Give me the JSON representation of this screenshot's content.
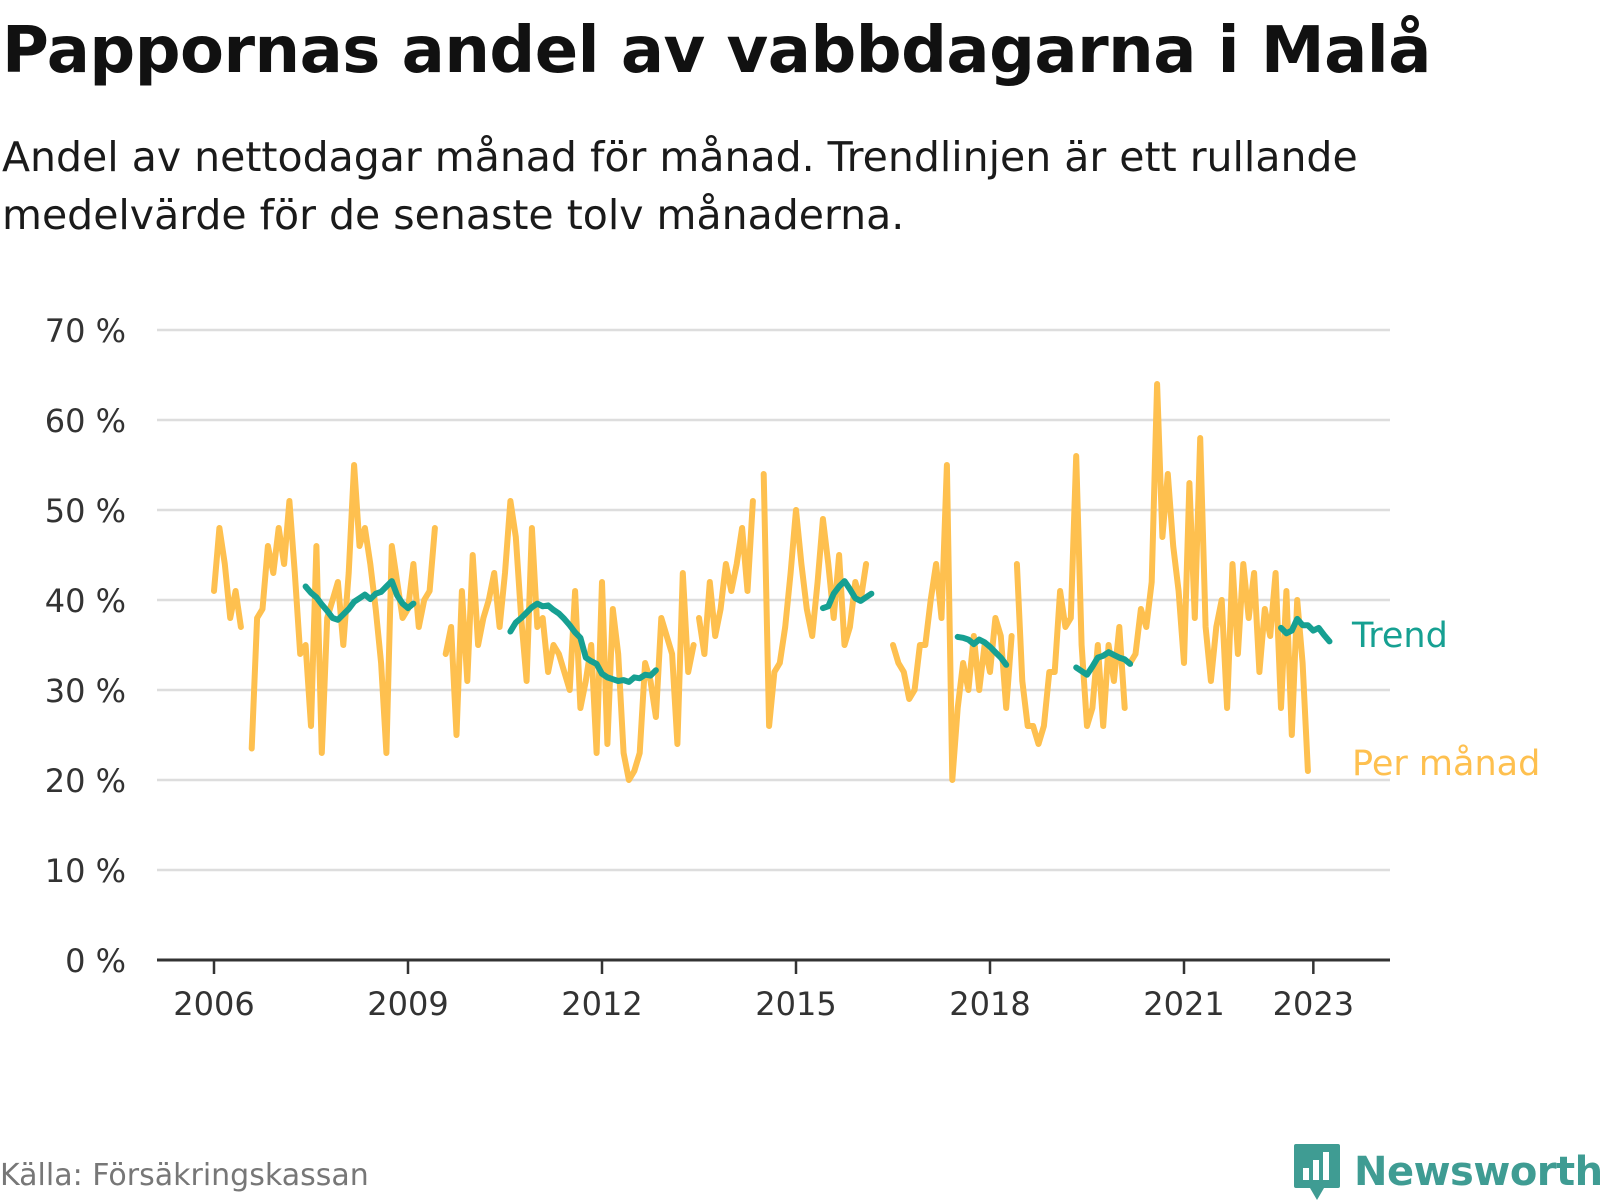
{
  "title": "Pappornas andel av vabbdagarna i Malå",
  "subtitle": "Andel av nettodagar månad för månad. Trendlinjen är ett rullande medelvärde för de senaste tolv månaderna.",
  "source": "Källa: Försäkringskassan",
  "brand": {
    "name": "Newsworthy",
    "logo_icon": "bar-chart-speech-bubble-icon"
  },
  "colors": {
    "monthly": "#fec04f",
    "trend": "#16a092",
    "grid": "#dddddd",
    "axis": "#333333",
    "text": "#333333"
  },
  "chart_data": {
    "type": "line",
    "xlim": [
      "2006-01",
      "2024-05"
    ],
    "ylim": [
      0,
      70
    ],
    "y_ticks": [
      "0 %",
      "10 %",
      "20 %",
      "30 %",
      "40 %",
      "50 %",
      "60 %",
      "70 %"
    ],
    "x_ticks": [
      {
        "date": "2006-01",
        "label": "2006"
      },
      {
        "date": "2009-01",
        "label": "2009"
      },
      {
        "date": "2012-01",
        "label": "2012"
      },
      {
        "date": "2015-01",
        "label": "2015"
      },
      {
        "date": "2018-01",
        "label": "2018"
      },
      {
        "date": "2021-01",
        "label": "2021"
      },
      {
        "date": "2023-01",
        "label": "2023"
      }
    ],
    "grid": true,
    "series": [
      {
        "name": "Per månad",
        "color": "#fec04f",
        "segments": [
          {
            "start": "2006-01",
            "values": [
              41,
              48,
              44,
              38,
              41,
              37,
              null,
              23.5,
              38,
              39,
              46,
              43,
              48,
              44,
              51,
              43,
              34,
              35,
              26,
              46,
              23,
              38,
              40,
              42,
              35,
              43,
              55,
              46,
              48,
              44,
              39,
              33,
              23,
              46,
              42,
              38,
              39,
              44,
              37,
              40,
              41,
              48
            ]
          },
          {
            "start": "2009-08",
            "values": [
              34,
              37,
              25,
              41,
              31,
              45,
              35,
              38,
              40,
              43,
              37,
              43,
              51,
              47,
              38,
              31,
              48,
              37,
              38,
              32,
              35,
              34,
              32,
              30,
              41,
              28,
              31,
              35,
              23,
              42,
              24,
              39,
              34,
              23,
              20,
              21,
              23,
              33,
              31,
              27,
              38,
              36,
              34,
              24,
              43,
              32,
              35
            ]
          },
          {
            "start": "2013-07",
            "values": [
              38,
              34,
              42,
              36,
              39,
              44,
              41,
              44,
              48,
              41,
              51,
              null,
              54,
              26,
              32,
              33,
              37,
              43,
              50,
              44,
              39,
              36,
              42,
              49,
              44,
              38,
              45,
              35,
              37,
              42,
              40,
              44
            ]
          },
          {
            "start": "2016-07",
            "values": [
              35,
              33,
              32,
              29,
              30,
              35,
              35,
              40,
              44,
              38,
              55,
              20,
              28,
              33,
              30,
              36,
              30,
              35,
              32,
              38,
              36,
              28,
              36
            ]
          },
          {
            "start": "2018-06",
            "values": [
              44,
              31,
              26,
              26,
              24,
              26,
              32,
              32,
              41,
              37,
              38,
              56,
              35,
              26,
              28,
              35,
              26,
              35,
              31,
              37,
              28
            ]
          },
          {
            "start": "2020-03",
            "values": [
              33,
              34,
              39,
              37,
              42,
              64,
              47,
              54,
              46,
              41,
              33,
              53,
              38,
              58,
              37,
              31,
              37,
              40,
              28,
              44,
              34,
              44,
              38,
              43,
              32,
              39,
              36,
              43,
              28,
              41,
              25,
              40,
              33,
              21
            ]
          }
        ]
      },
      {
        "name": "Trend",
        "color": "#16a092",
        "segments": [
          {
            "start": "2007-06",
            "values": [
              41.5,
              40.8,
              40.3,
              39.5,
              38.8,
              38.0,
              37.8,
              38.4,
              39.0,
              39.8,
              40.2,
              40.6,
              40.1,
              40.7,
              40.9,
              41.5,
              42.1,
              40.5,
              39.6,
              39.1,
              39.6
            ]
          },
          {
            "start": "2010-08",
            "values": [
              36.5,
              37.5,
              38.0,
              38.6,
              39.2,
              39.6,
              39.3,
              39.4,
              38.9,
              38.5,
              37.9,
              37.2,
              36.4,
              35.8,
              33.6,
              33.2,
              32.9,
              31.8,
              31.4,
              31.2,
              31.0,
              31.1,
              30.9,
              31.4,
              31.3,
              31.7,
              31.6,
              32.2
            ]
          },
          {
            "start": "2015-06",
            "values": [
              39.1,
              39.3,
              40.7,
              41.5,
              42.1,
              41.2,
              40.2,
              39.9,
              40.3,
              40.7
            ]
          },
          {
            "start": "2017-07",
            "values": [
              35.9,
              35.8,
              35.6,
              35.1,
              35.6,
              35.3,
              34.8,
              34.2,
              33.6,
              32.8
            ]
          },
          {
            "start": "2019-05",
            "values": [
              32.5,
              32.1,
              31.7,
              32.6,
              33.6,
              33.8,
              34.2,
              33.9,
              33.6,
              33.4,
              32.9
            ]
          },
          {
            "start": "2022-07",
            "values": [
              36.9,
              36.3,
              36.6,
              37.9,
              37.2,
              37.2,
              36.6,
              36.9,
              36.1,
              35.4
            ]
          }
        ]
      }
    ],
    "labels": [
      {
        "text": "Trend",
        "series": "Trend"
      },
      {
        "text": "Per månad",
        "series": "Per månad"
      }
    ]
  }
}
